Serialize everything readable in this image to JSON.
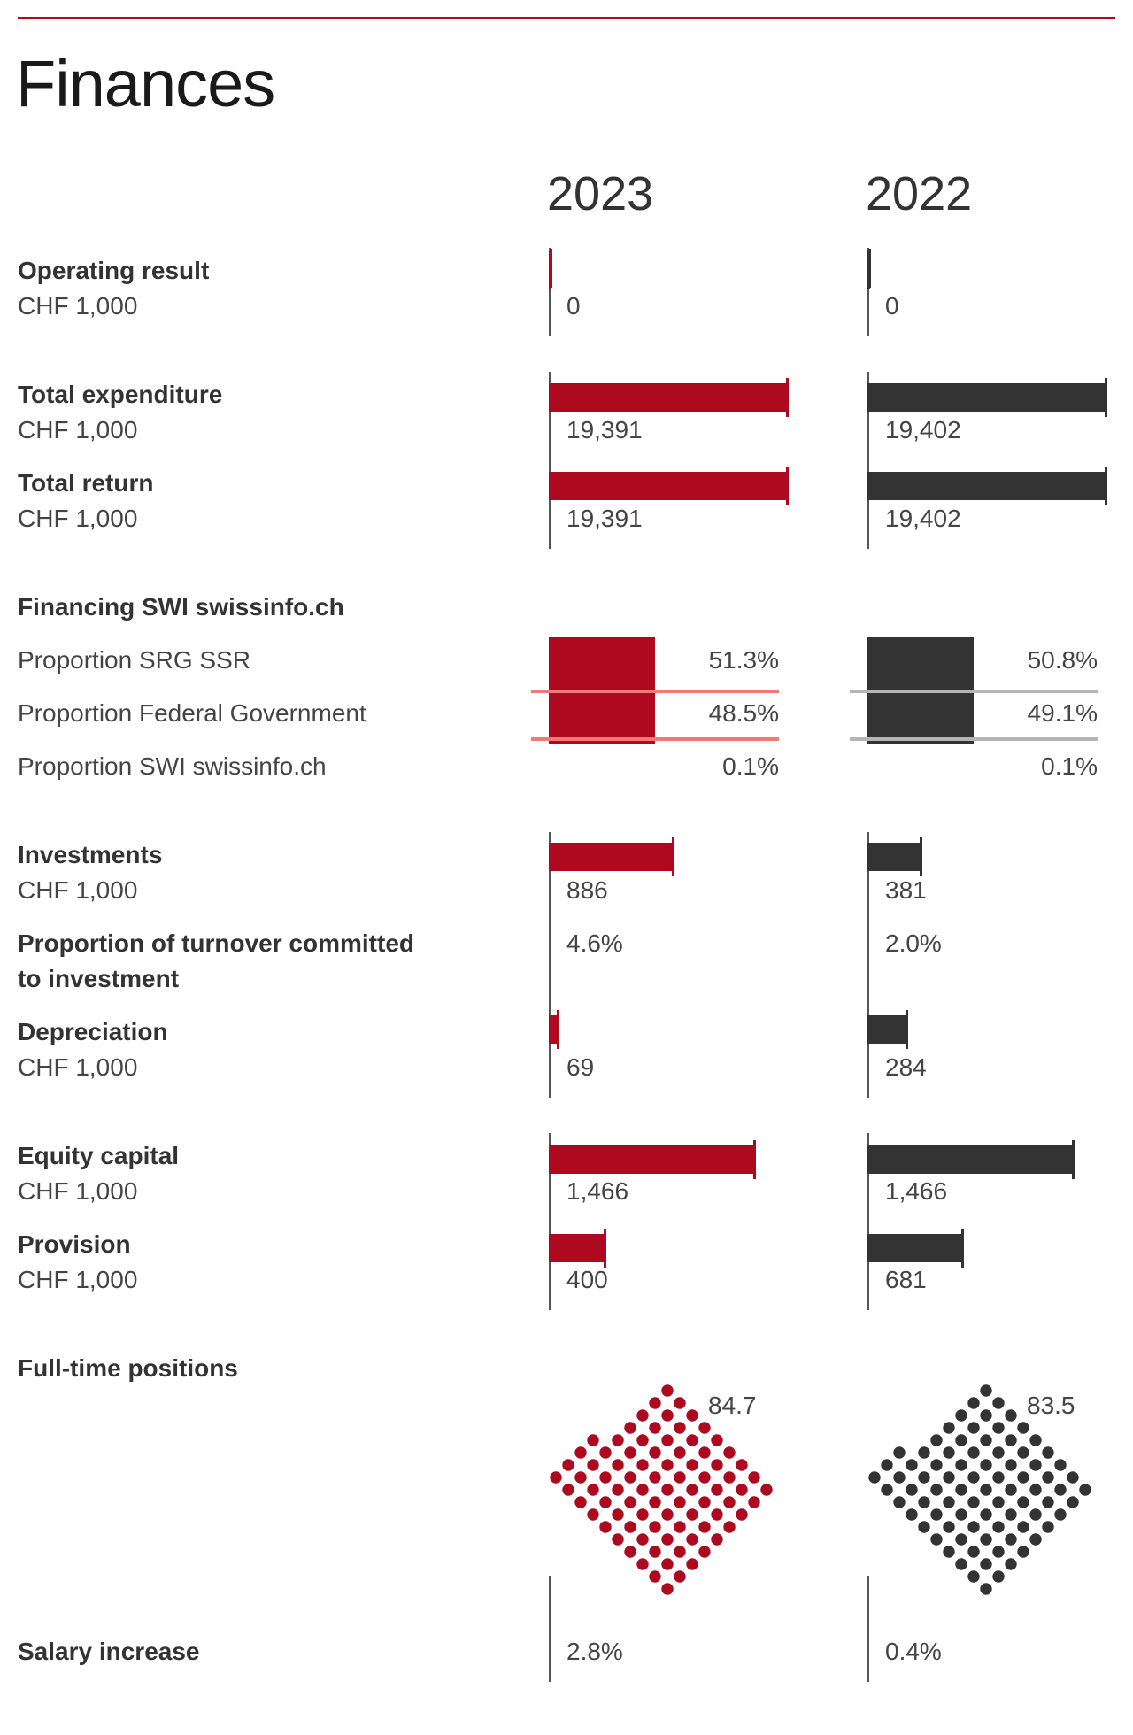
{
  "title": "Finances",
  "years": [
    "2023",
    "2022"
  ],
  "colors": {
    "y2023": "#ad0a1f",
    "y2022": "#333333",
    "line2023": "#f07a78",
    "line2022": "#b5b5b5"
  },
  "unit": "CHF 1,000",
  "chart_data": {
    "type": "bar",
    "rows": [
      {
        "label": "Operating result",
        "unit": "CHF 1,000",
        "values": [
          0,
          0
        ],
        "display": [
          "0",
          "0"
        ]
      },
      {
        "label": "Total expenditure",
        "unit": "CHF 1,000",
        "values": [
          19391,
          19402
        ],
        "display": [
          "19,391",
          "19,402"
        ]
      },
      {
        "label": "Total return",
        "unit": "CHF 1,000",
        "values": [
          19391,
          19402
        ],
        "display": [
          "19,391",
          "19,402"
        ]
      },
      {
        "label": "Investments",
        "unit": "CHF 1,000",
        "values": [
          886,
          381
        ],
        "display": [
          "886",
          "381"
        ]
      },
      {
        "label": "Proportion of turnover committed to investment",
        "label_lines": [
          "Proportion of turnover committed",
          "to investment"
        ],
        "values": [
          4.6,
          2.0
        ],
        "display": [
          "4.6%",
          "2.0%"
        ]
      },
      {
        "label": "Depreciation",
        "unit": "CHF 1,000",
        "values": [
          69,
          284
        ],
        "display": [
          "69",
          "284"
        ]
      },
      {
        "label": "Equity capital",
        "unit": "CHF 1,000",
        "values": [
          1466,
          1466
        ],
        "display": [
          "1,466",
          "1,466"
        ]
      },
      {
        "label": "Provision",
        "unit": "CHF 1,000",
        "values": [
          400,
          681
        ],
        "display": [
          "400",
          "681"
        ]
      }
    ],
    "financing": {
      "title": "Financing SWI swissinfo.ch",
      "items": [
        {
          "label": "Proportion SRG SSR",
          "values": [
            51.3,
            50.8
          ],
          "display": [
            "51.3%",
            "50.8%"
          ]
        },
        {
          "label": "Proportion Federal Government",
          "values": [
            48.5,
            49.1
          ],
          "display": [
            "48.5%",
            "49.1%"
          ]
        },
        {
          "label": "Proportion SWI swissinfo.ch",
          "values": [
            0.1,
            0.1
          ],
          "display": [
            "0.1%",
            "0.1%"
          ]
        }
      ]
    },
    "fulltime": {
      "label": "Full-time positions",
      "values": [
        84.7,
        83.5
      ],
      "display": [
        "84.7",
        "83.5"
      ],
      "type": "dot-diamond"
    },
    "salary": {
      "label": "Salary increase",
      "values": [
        2.8,
        0.4
      ],
      "display": [
        "2.8%",
        "0.4%"
      ]
    }
  }
}
